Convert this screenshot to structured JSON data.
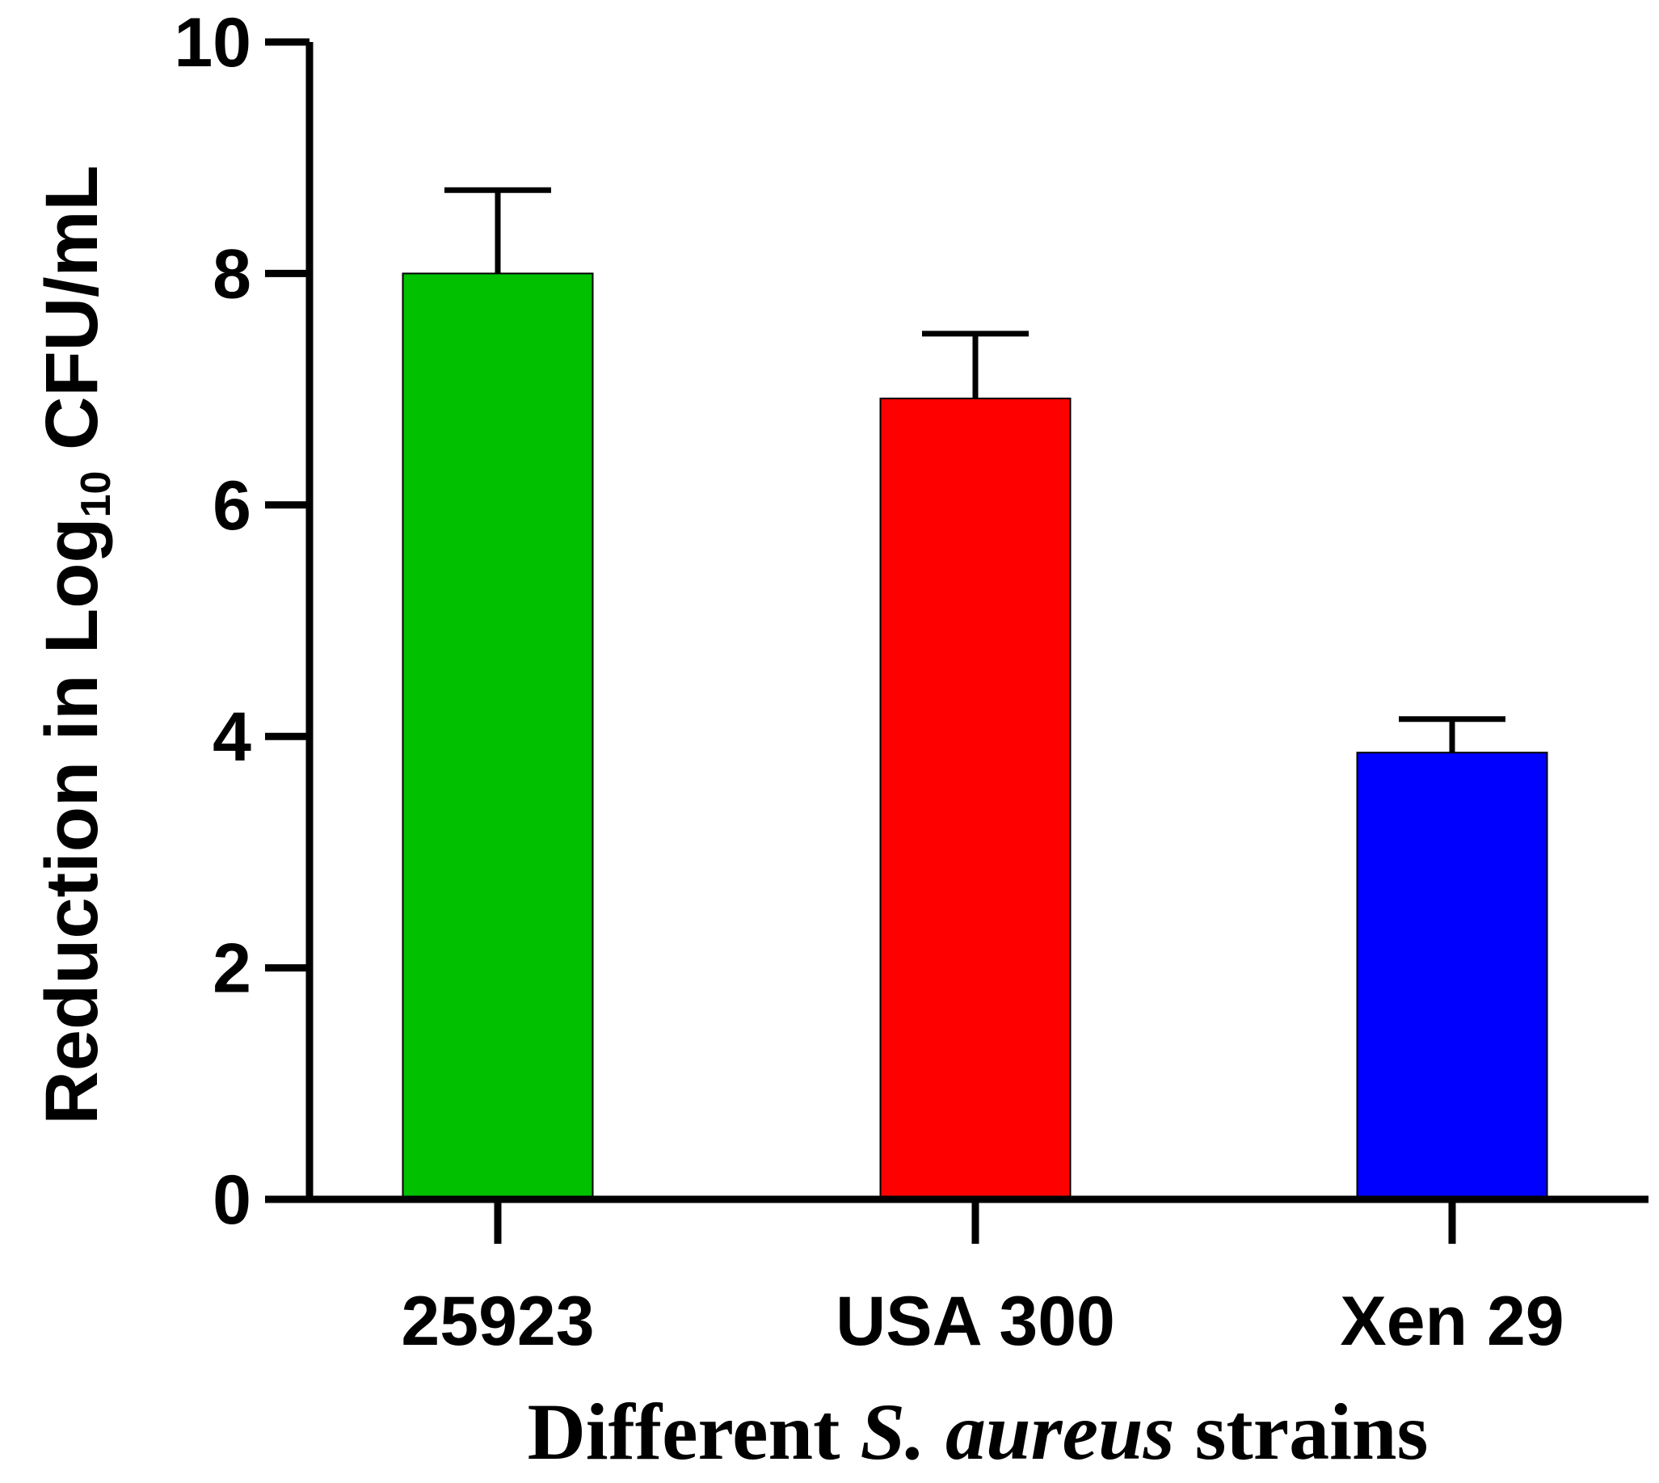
{
  "chart_data": {
    "type": "bar",
    "categories": [
      "25923",
      "USA 300",
      "Xen 29"
    ],
    "values": [
      8.0,
      6.92,
      3.86
    ],
    "error_upper": [
      0.72,
      0.56,
      0.29
    ],
    "colors": [
      "#00c000",
      "#ff0000",
      "#0000ff"
    ],
    "ylim": [
      0,
      10
    ],
    "yticks": [
      "0",
      "2",
      "4",
      "6",
      "8",
      "10"
    ],
    "ylabel": {
      "pre": "Reduction in Log",
      "sub": "10",
      "post": " CFU/mL"
    },
    "xlabel": {
      "pre": "Different ",
      "italic": "S. aureus",
      "post": " strains"
    },
    "grid": false,
    "legend": "none"
  }
}
